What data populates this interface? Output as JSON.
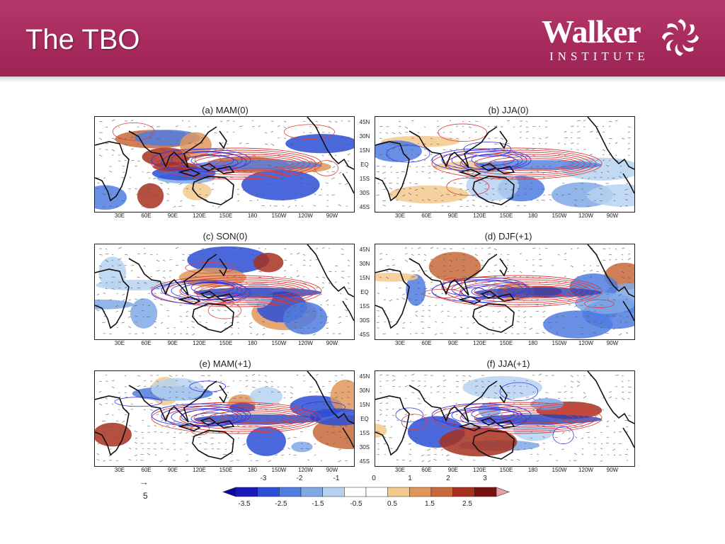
{
  "header": {
    "title": "The TBO",
    "logo_word": "Walker",
    "logo_sub": "INSTITUTE",
    "logo_icon": "swirl-icon",
    "colors": {
      "header_bg": "#a72a5c",
      "text": "#ffffff"
    }
  },
  "panels": [
    {
      "title": "(a) MAM(0)"
    },
    {
      "title": "(b) JJA(0)"
    },
    {
      "title": "(c) SON(0)"
    },
    {
      "title": "(d) DJF(+1)"
    },
    {
      "title": "(e) MAM(+1)"
    },
    {
      "title": "(f) JJA(+1)"
    }
  ],
  "lat_labels": [
    "45N",
    "30N",
    "15N",
    "EQ",
    "15S",
    "30S",
    "45S"
  ],
  "lon_labels": [
    "30E",
    "60E",
    "90E",
    "120E",
    "150E",
    "180",
    "150W",
    "120W",
    "90W"
  ],
  "colorbar": {
    "top_labels": [
      "-3",
      "-2",
      "-1",
      "0",
      "1",
      "2",
      "3"
    ],
    "bottom_labels": [
      "-3.5",
      "-2.5",
      "-1.5",
      "-0.5",
      "0.5",
      "1.5",
      "2.5"
    ],
    "colors": [
      "#1a1ab8",
      "#2c4fd6",
      "#4f7de0",
      "#7fa8e6",
      "#b6d2f0",
      "#ffffff",
      "#ffffff",
      "#f3c98f",
      "#e0965a",
      "#c86a3a",
      "#a8301f",
      "#7a1010"
    ],
    "end_arrow_colors": {
      "left": "#0a0aa0",
      "right": "#e8a0a8"
    }
  },
  "reference_vector": {
    "value": "5",
    "icon": "arrow-right-icon"
  },
  "legend_colors": {
    "positive_contour": "#e23a3a",
    "negative_contour": "#3a3ae0",
    "coast": "#111111"
  }
}
